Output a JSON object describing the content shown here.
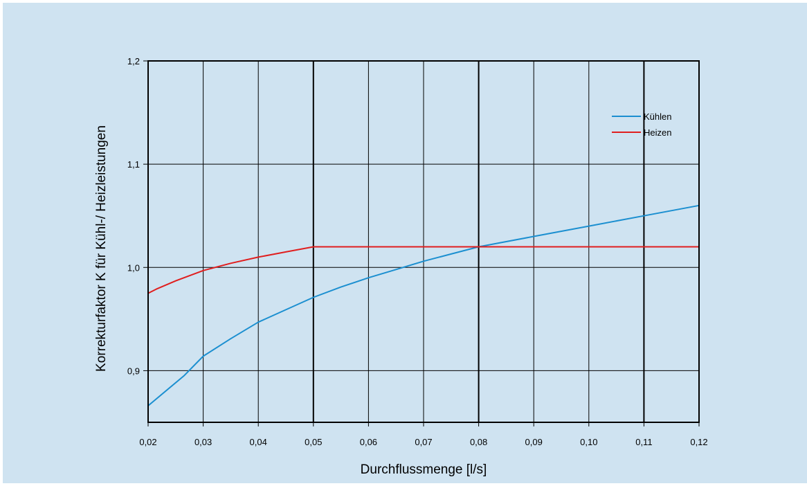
{
  "chart_data": {
    "type": "line",
    "title": "",
    "xlabel": "Durchflussmenge [l/s]",
    "ylabel": "Korrekturfaktor K für Kühl-/ Heizleistungen",
    "xlim": [
      0.02,
      0.12
    ],
    "ylim": [
      0.85,
      1.2
    ],
    "x_ticks": [
      0.02,
      0.03,
      0.04,
      0.05,
      0.06,
      0.07,
      0.08,
      0.09,
      0.1,
      0.11,
      0.12
    ],
    "x_tick_labels": [
      "0,02",
      "0,03",
      "0,04",
      "0,05",
      "0,06",
      "0,07",
      "0,08",
      "0,09",
      "0,10",
      "0,11",
      "0,12"
    ],
    "y_ticks": [
      0.9,
      1.0,
      1.1,
      1.2
    ],
    "y_tick_labels": [
      "0,9",
      "1,0",
      "1,1",
      "1,2"
    ],
    "grid": true,
    "legend_position": "top-right",
    "series": [
      {
        "name": "Kühlen",
        "color": "#1b8fd0",
        "x": [
          0.02,
          0.0265,
          0.03,
          0.035,
          0.04,
          0.045,
          0.05,
          0.055,
          0.06,
          0.065,
          0.07,
          0.075,
          0.08,
          0.09,
          0.1,
          0.11,
          0.12
        ],
        "y": [
          0.866,
          0.895,
          0.914,
          0.931,
          0.947,
          0.959,
          0.971,
          0.981,
          0.99,
          0.998,
          1.006,
          1.013,
          1.02,
          1.03,
          1.04,
          1.05,
          1.06
        ]
      },
      {
        "name": "Heizen",
        "color": "#e01e1e",
        "x": [
          0.02,
          0.0215,
          0.025,
          0.03,
          0.035,
          0.04,
          0.045,
          0.05,
          0.06,
          0.07,
          0.08,
          0.09,
          0.1,
          0.11,
          0.12
        ],
        "y": [
          0.975,
          0.979,
          0.987,
          0.997,
          1.004,
          1.01,
          1.015,
          1.02,
          1.02,
          1.02,
          1.02,
          1.02,
          1.02,
          1.02,
          1.02
        ]
      }
    ]
  }
}
